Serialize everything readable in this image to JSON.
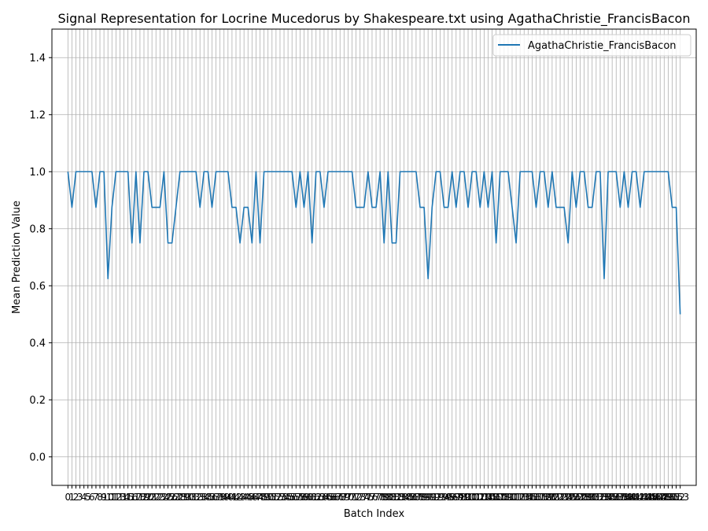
{
  "chart_data": {
    "type": "line",
    "title": "Signal Representation for Locrine Mucedorus by Shakespeare.txt using AgathaChristie_FrancisBacon",
    "xlabel": "Batch Index",
    "ylabel": "Mean Prediction Value",
    "xlim": [
      -4,
      157
    ],
    "ylim": [
      -0.1,
      1.5
    ],
    "yticks": [
      0.0,
      0.2,
      0.4,
      0.6,
      0.8,
      1.0,
      1.2,
      1.4
    ],
    "ytick_labels": [
      "0.0",
      "0.2",
      "0.4",
      "0.6",
      "0.8",
      "1.0",
      "1.2",
      "1.4"
    ],
    "xticks_count": 154,
    "grid": true,
    "legend_position": "top-right",
    "series": [
      {
        "name": "AgathaChristie_FrancisBacon",
        "color": "#1f77b4",
        "x_start": 0,
        "values": [
          1.0,
          0.875,
          1.0,
          1.0,
          1.0,
          1.0,
          1.0,
          0.875,
          1.0,
          1.0,
          0.625,
          0.875,
          1.0,
          1.0,
          1.0,
          1.0,
          0.75,
          1.0,
          0.75,
          1.0,
          1.0,
          0.875,
          0.875,
          0.875,
          1.0,
          0.75,
          0.75,
          0.875,
          1.0,
          1.0,
          1.0,
          1.0,
          1.0,
          0.875,
          1.0,
          1.0,
          0.875,
          1.0,
          1.0,
          1.0,
          1.0,
          0.875,
          0.875,
          0.75,
          0.875,
          0.875,
          0.75,
          1.0,
          0.75,
          1.0,
          1.0,
          1.0,
          1.0,
          1.0,
          1.0,
          1.0,
          1.0,
          0.875,
          1.0,
          0.875,
          1.0,
          0.75,
          1.0,
          1.0,
          0.875,
          1.0,
          1.0,
          1.0,
          1.0,
          1.0,
          1.0,
          1.0,
          0.875,
          0.875,
          0.875,
          1.0,
          0.875,
          0.875,
          1.0,
          0.75,
          1.0,
          0.75,
          0.75,
          1.0,
          1.0,
          1.0,
          1.0,
          1.0,
          0.875,
          0.875,
          0.625,
          0.875,
          1.0,
          1.0,
          0.875,
          0.875,
          1.0,
          0.875,
          1.0,
          1.0,
          0.875,
          1.0,
          1.0,
          0.875,
          1.0,
          0.875,
          1.0,
          0.75,
          1.0,
          1.0,
          1.0,
          0.875,
          0.75,
          1.0,
          1.0,
          1.0,
          1.0,
          0.875,
          1.0,
          1.0,
          0.875,
          1.0,
          0.875,
          0.875,
          0.875,
          0.75,
          1.0,
          0.875,
          1.0,
          1.0,
          0.875,
          0.875,
          1.0,
          1.0,
          0.625,
          1.0,
          1.0,
          1.0,
          0.875,
          1.0,
          0.875,
          1.0,
          1.0,
          0.875,
          1.0,
          1.0,
          1.0,
          1.0,
          1.0,
          1.0,
          1.0,
          0.875,
          0.875,
          0.5
        ]
      }
    ]
  }
}
